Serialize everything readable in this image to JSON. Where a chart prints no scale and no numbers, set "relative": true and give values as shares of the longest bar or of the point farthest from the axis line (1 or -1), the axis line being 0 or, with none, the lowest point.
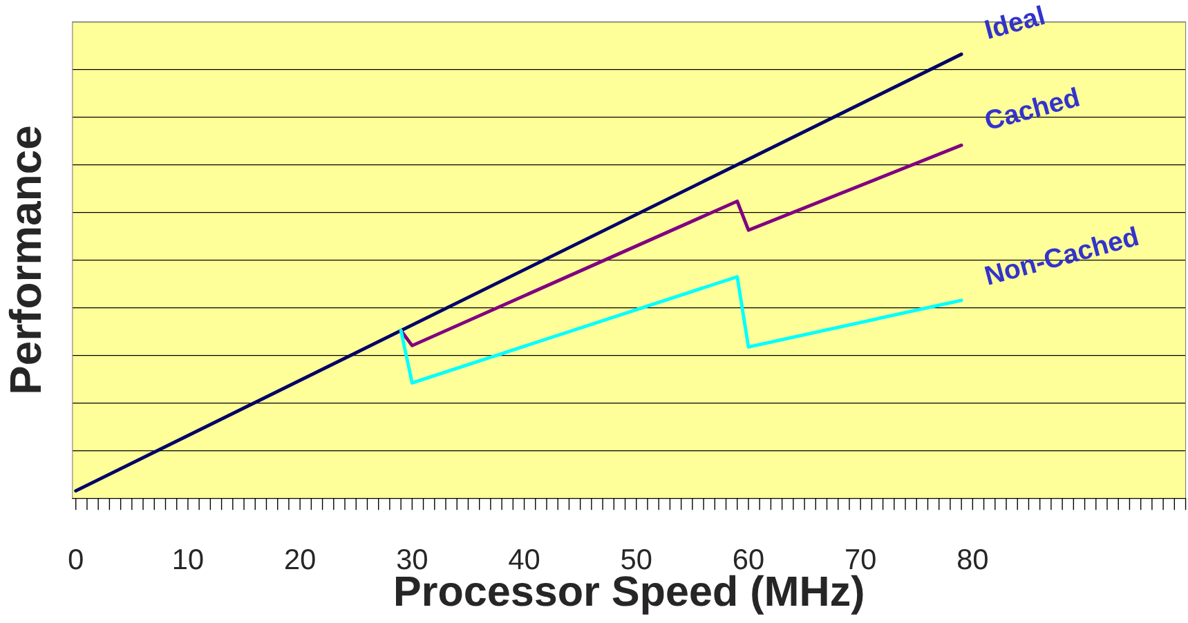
{
  "chart_data": {
    "type": "line",
    "relative": true,
    "xlabel": "Processor Speed (MHz)",
    "ylabel": "Performance",
    "xlim": [
      -0.3,
      99
    ],
    "xticks": [
      0,
      10,
      20,
      30,
      40,
      50,
      60,
      70,
      80
    ],
    "grid": "y",
    "legend": false,
    "marker": "none",
    "line_style": "solid",
    "series": [
      {
        "name": "Ideal",
        "color": "#000066",
        "x": [
          0,
          79
        ],
        "values": [
          0.017,
          1
        ]
      },
      {
        "name": "Cached",
        "color": "#800080",
        "x": [
          29,
          30,
          59,
          60,
          79
        ],
        "values": [
          0.378,
          0.344,
          0.669,
          0.604,
          0.795
        ]
      },
      {
        "name": "Non-Cached",
        "color": "#00ffff",
        "x": [
          29,
          30,
          59,
          60,
          79
        ],
        "values": [
          0.378,
          0.26,
          0.499,
          0.341,
          0.446
        ]
      }
    ]
  }
}
